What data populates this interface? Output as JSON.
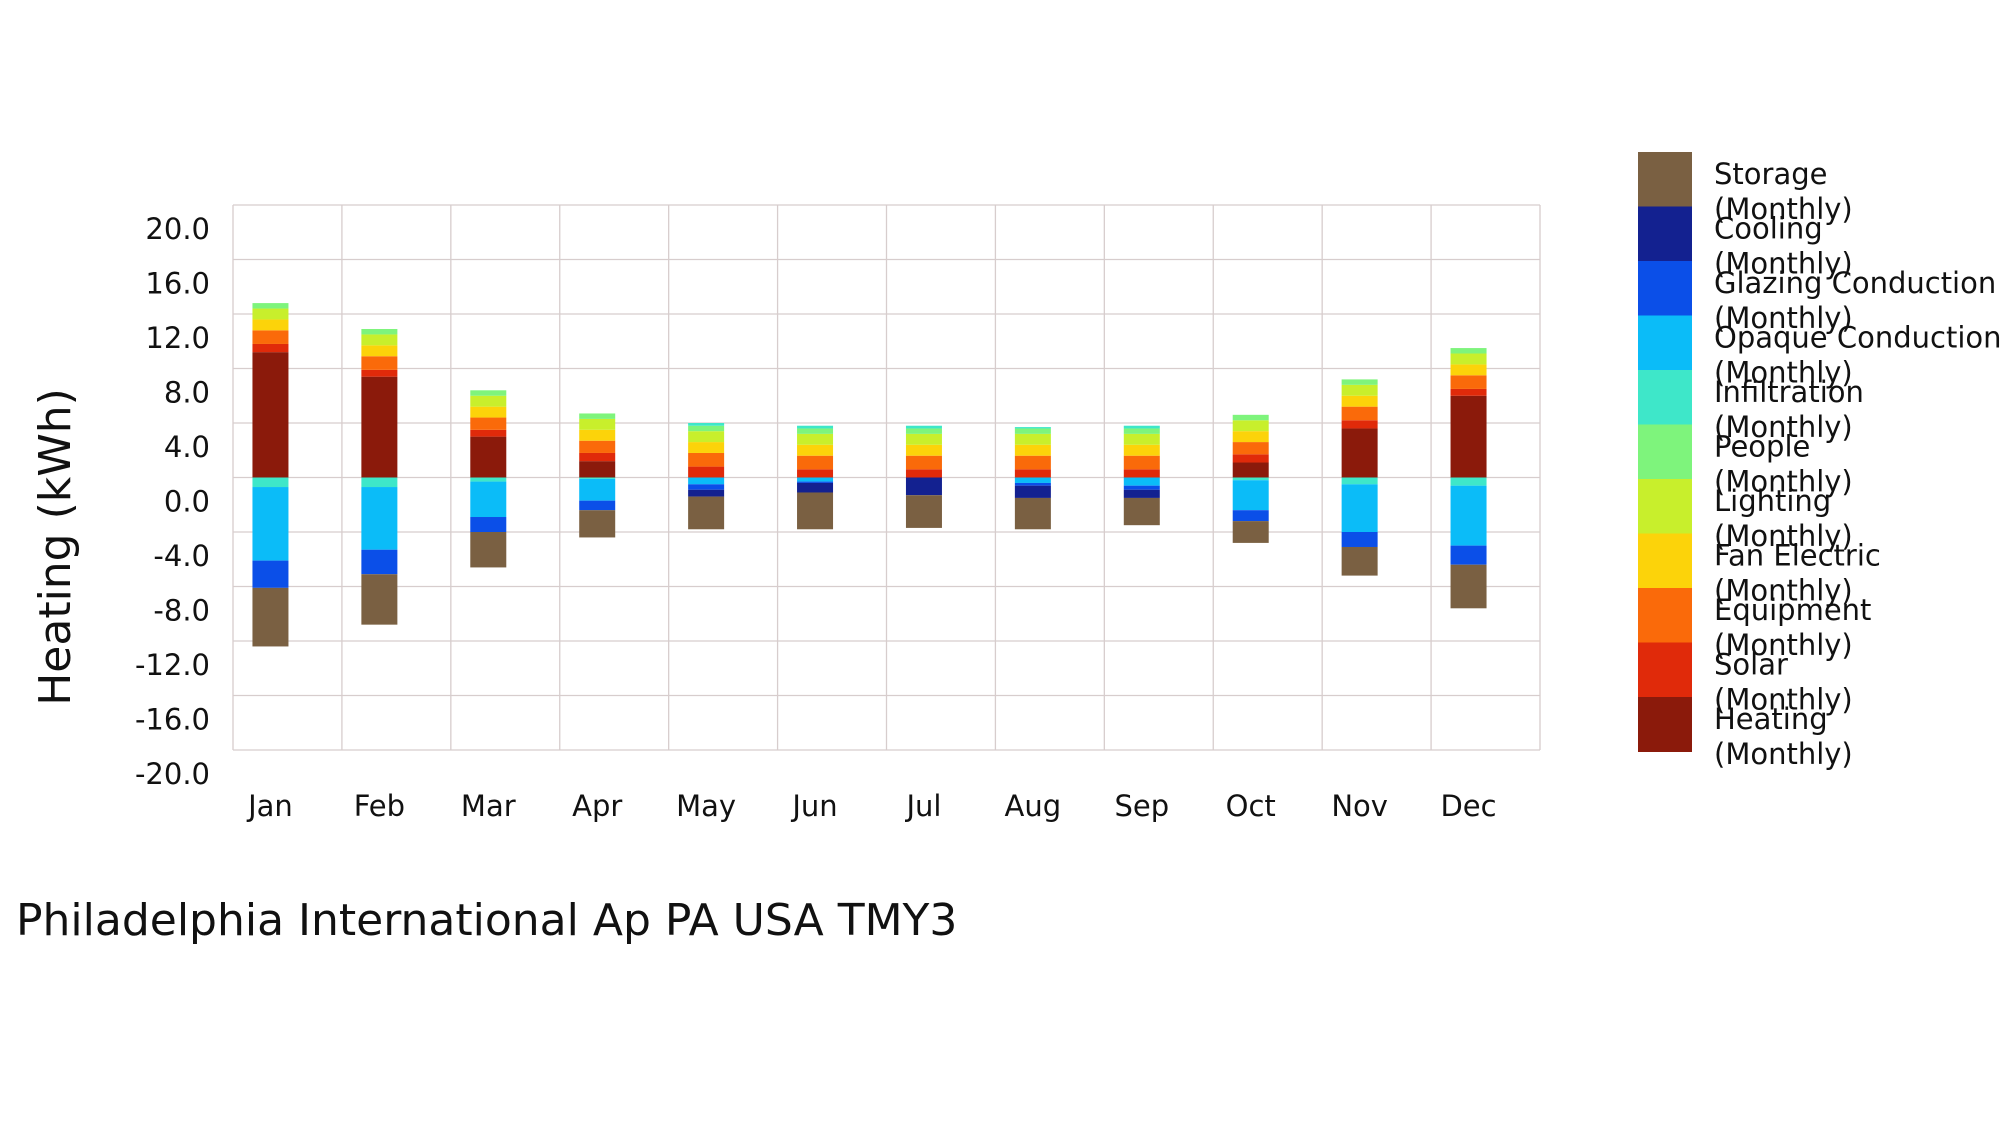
{
  "chart_data": {
    "type": "bar",
    "stacked": true,
    "title": "Philadelphia International Ap PA USA TMY3",
    "xlabel": "",
    "ylabel": "Heating (kWh)",
    "ylim": [
      -20,
      20
    ],
    "yticks": [
      "20.0",
      "16.0",
      "12.0",
      "8.0",
      "4.0",
      "0.0",
      "-4.0",
      "-8.0",
      "-12.0",
      "-16.0",
      "-20.0"
    ],
    "categories": [
      "Jan",
      "Feb",
      "Mar",
      "Apr",
      "May",
      "Jun",
      "Jul",
      "Aug",
      "Sep",
      "Oct",
      "Nov",
      "Dec"
    ],
    "legend_position": "right",
    "series": [
      {
        "name": "Heating (Monthly)",
        "color": "#8b1a0b",
        "values": [
          9.2,
          7.4,
          3.0,
          1.2,
          0,
          0,
          0,
          0,
          0,
          1.1,
          3.6,
          6.0
        ]
      },
      {
        "name": "Solar (Monthly)",
        "color": "#e02a0a",
        "values": [
          0.6,
          0.5,
          0.5,
          0.6,
          0.8,
          0.6,
          0.6,
          0.6,
          0.6,
          0.6,
          0.6,
          0.5
        ]
      },
      {
        "name": "Equipment (Monthly)",
        "color": "#fa6a0a",
        "values": [
          1.0,
          1.0,
          0.9,
          0.9,
          1.0,
          1.0,
          1.0,
          1.0,
          1.0,
          0.9,
          1.0,
          1.0
        ]
      },
      {
        "name": "Fan Electric (Monthly)",
        "color": "#fcd30a",
        "values": [
          0.8,
          0.8,
          0.8,
          0.8,
          0.8,
          0.8,
          0.8,
          0.8,
          0.8,
          0.8,
          0.8,
          0.8
        ]
      },
      {
        "name": "Lighting (Monthly)",
        "color": "#c8ef2c",
        "values": [
          0.8,
          0.8,
          0.8,
          0.8,
          0.8,
          0.8,
          0.8,
          0.8,
          0.8,
          0.8,
          0.8,
          0.8
        ]
      },
      {
        "name": "People (Monthly)",
        "color": "#7ef47c",
        "values": [
          0.4,
          0.4,
          0.4,
          0.4,
          0.4,
          0.4,
          0.4,
          0.4,
          0.4,
          0.4,
          0.4,
          0.4
        ]
      },
      {
        "name": "Infiltration (Monthly)",
        "color": "#3ee7c9",
        "values": [
          -0.7,
          -0.7,
          -0.3,
          -0.1,
          0.2,
          0.2,
          0.2,
          0.1,
          0.2,
          -0.2,
          -0.5,
          -0.6
        ]
      },
      {
        "name": "Opaque Conduction (Monthly)",
        "color": "#0bbcf8",
        "values": [
          -5.4,
          -4.6,
          -2.6,
          -1.6,
          -0.5,
          -0.3,
          0.0,
          -0.4,
          -0.6,
          -2.2,
          -3.5,
          -4.4
        ]
      },
      {
        "name": "Glazing Conduction (Monthly)",
        "color": "#0b4fe8",
        "values": [
          -2.0,
          -1.8,
          -1.1,
          -0.7,
          -0.4,
          -0.1,
          0.0,
          -0.2,
          -0.3,
          -0.8,
          -1.1,
          -1.4
        ]
      },
      {
        "name": "Cooling (Monthly)",
        "color": "#132190",
        "values": [
          0,
          0,
          0,
          0,
          -0.5,
          -0.7,
          -1.3,
          -0.9,
          -0.6,
          0,
          0,
          0
        ]
      },
      {
        "name": "Storage (Monthly)",
        "color": "#7a6042",
        "values": [
          -4.3,
          -3.7,
          -2.6,
          -2.0,
          -2.4,
          -2.7,
          -2.4,
          -2.3,
          -2.0,
          -1.6,
          -2.1,
          -3.2
        ]
      }
    ],
    "legend_labels": [
      [
        "Storage",
        "(Monthly)"
      ],
      [
        "Cooling",
        "(Monthly)"
      ],
      [
        "Glazing Conduction",
        "(Monthly)"
      ],
      [
        "Opaque Conduction",
        "(Monthly)"
      ],
      [
        "Infiltration",
        "(Monthly)"
      ],
      [
        "People",
        "(Monthly)"
      ],
      [
        "Lighting",
        "(Monthly)"
      ],
      [
        "Fan Electric",
        "(Monthly)"
      ],
      [
        "Equipment",
        "(Monthly)"
      ],
      [
        "Solar",
        "(Monthly)"
      ],
      [
        "Heating",
        "(Monthly)"
      ]
    ]
  }
}
